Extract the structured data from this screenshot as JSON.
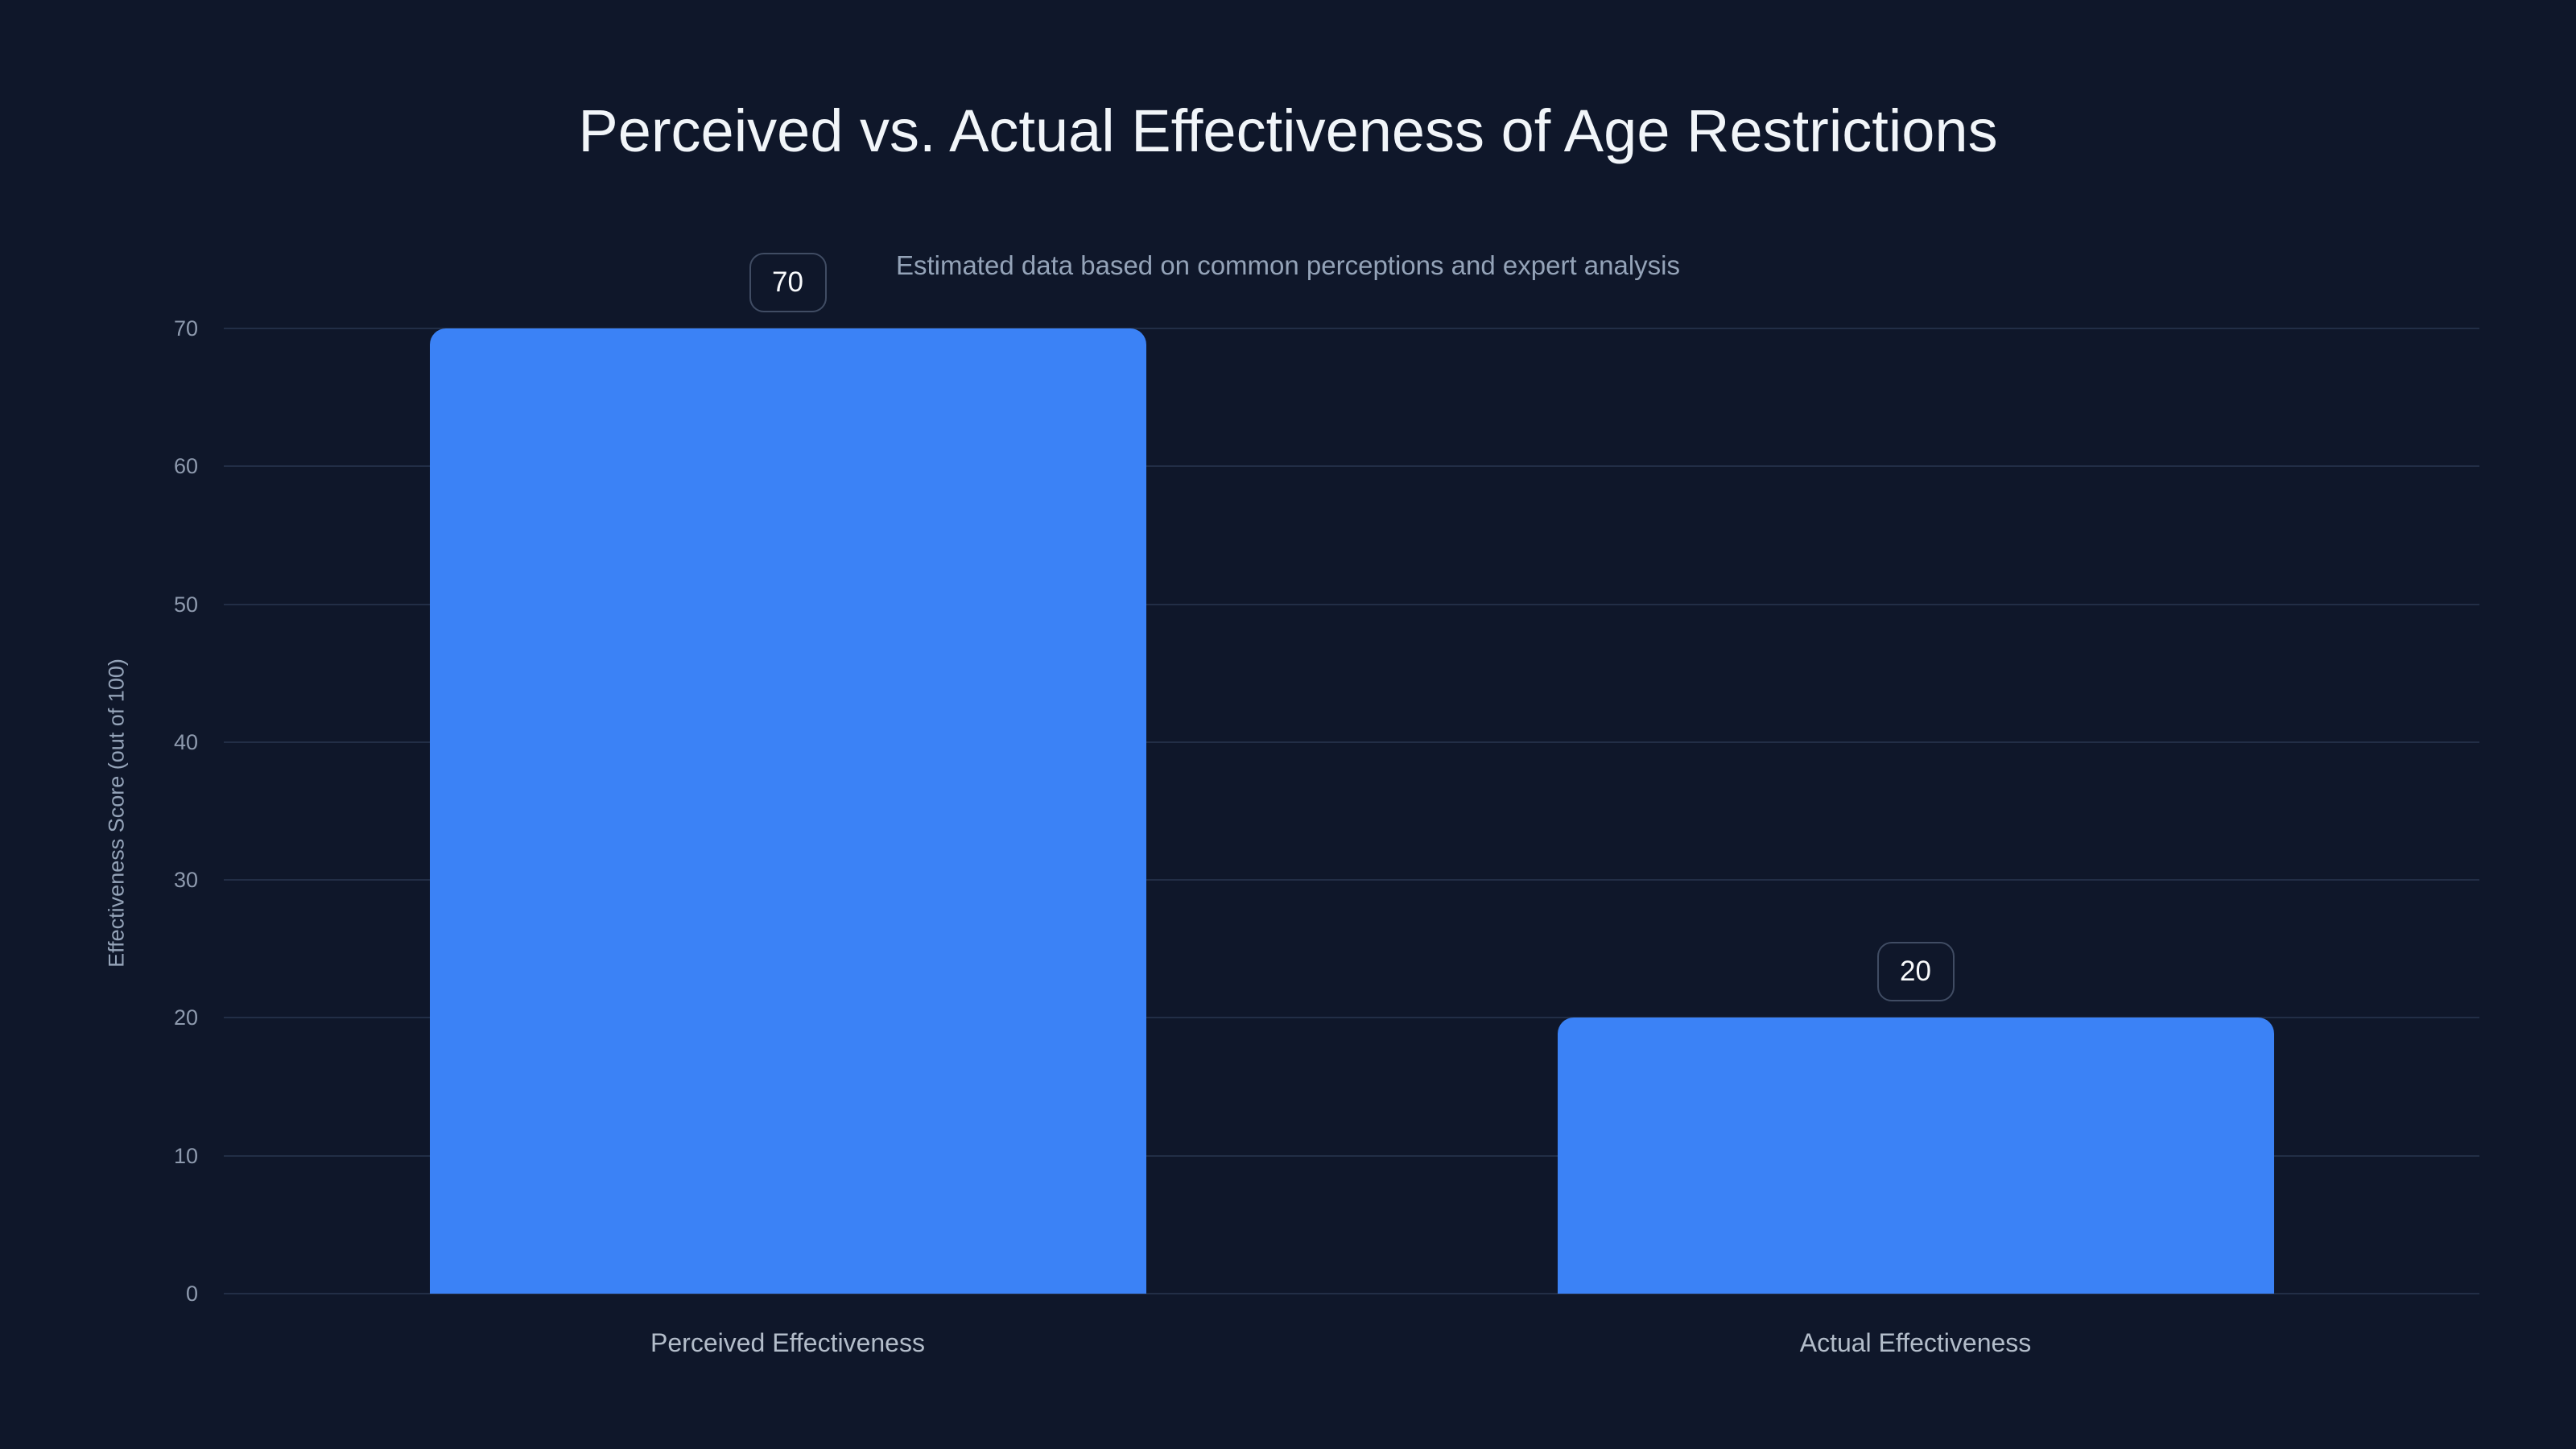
{
  "page": {
    "background": "#0f172a"
  },
  "chart_data": {
    "type": "bar",
    "title": "Perceived vs. Actual Effectiveness of Age Restrictions",
    "subtitle": "Estimated data based on common perceptions and expert analysis",
    "categories": [
      "Perceived Effectiveness",
      "Actual Effectiveness"
    ],
    "values": [
      70,
      20
    ],
    "value_labels": [
      "70",
      "20"
    ],
    "xlabel": "",
    "ylabel": "Effectiveness Score (out of 100)",
    "ylim": [
      0,
      70
    ],
    "yticks": [
      0,
      10,
      20,
      30,
      40,
      50,
      60,
      70
    ],
    "grid": "horizontal",
    "legend": "none",
    "colors": {
      "background": "#0f172a",
      "bar": "#3b82f6",
      "title": "#f1f5f9",
      "subtitle": "#94a3b8",
      "tick_label": "#8e9aae",
      "category_label": "#b3bdca",
      "gridline": "#222e46",
      "badge_border": "#404c63",
      "badge_text": "#f8fafc"
    }
  }
}
